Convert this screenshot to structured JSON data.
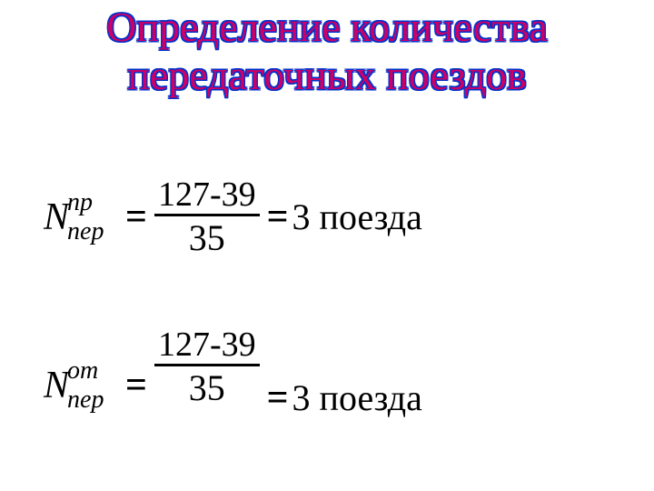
{
  "title_line1": "Определение количества",
  "title_line2": "передаточных поездов",
  "formulas": {
    "row1": {
      "var": "N",
      "sub": "пер",
      "sup": "пр",
      "eq": "=",
      "numerator": "127-39",
      "denominator": "35",
      "eq2": "=",
      "result": "3 поезда"
    },
    "row2": {
      "var": "N",
      "sub": "пер",
      "sup": "от",
      "eq": "=",
      "numerator": "127-39",
      "denominator": "35",
      "eq2": "=",
      "result": "3 поезда"
    }
  },
  "colors": {
    "title_fill": "#cc0066",
    "title_outline": "#0033cc",
    "text": "#000000",
    "background": "#ffffff"
  },
  "typography": {
    "title_fontsize_pt": 34,
    "formula_fontsize_pt": 32,
    "font_family": "Times New Roman"
  }
}
